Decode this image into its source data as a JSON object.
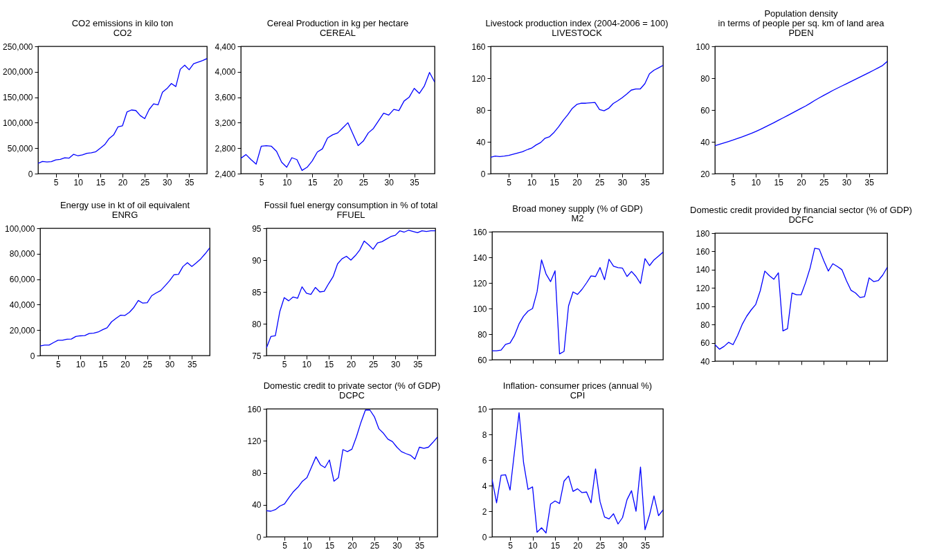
{
  "chart_data": [
    {
      "type": "line",
      "title": "CO2 emissions in kilo ton",
      "subtitle": "CO2",
      "x": [
        1,
        2,
        3,
        4,
        5,
        6,
        7,
        8,
        9,
        10,
        11,
        12,
        13,
        14,
        15,
        16,
        17,
        18,
        19,
        20,
        21,
        22,
        23,
        24,
        25,
        26,
        27,
        28,
        29,
        30,
        31,
        32,
        33,
        34,
        35,
        36,
        37,
        38,
        39
      ],
      "xlim": [
        1,
        39
      ],
      "xticks": [
        5,
        10,
        15,
        20,
        25,
        30,
        35
      ],
      "ylim": [
        0,
        250000
      ],
      "yticks": [
        0,
        {
          "value": 50000,
          "label": "50,000"
        },
        {
          "value": 100000,
          "label": "100,000"
        },
        {
          "value": 150000,
          "label": "150,000"
        },
        {
          "value": 200000,
          "label": "200,000"
        },
        {
          "value": 250000,
          "label": "250,000"
        }
      ],
      "series": [
        {
          "color": "#0000ff",
          "values": [
            20000,
            24000,
            23000,
            23500,
            27000,
            28000,
            31000,
            30500,
            38000,
            35000,
            37000,
            40000,
            41000,
            43000,
            50000,
            57000,
            69000,
            76000,
            92000,
            94000,
            121000,
            125000,
            124000,
            114000,
            108000,
            126000,
            137000,
            135000,
            160000,
            167000,
            177000,
            171000,
            205000,
            213000,
            204000,
            216000,
            219000,
            222000,
            226000
          ]
        }
      ]
    },
    {
      "type": "line",
      "title": "Cereal Production in kg per hectare",
      "subtitle": "CEREAL",
      "x": [
        1,
        2,
        3,
        4,
        5,
        6,
        7,
        8,
        9,
        10,
        11,
        12,
        13,
        14,
        15,
        16,
        17,
        18,
        19,
        20,
        21,
        22,
        23,
        24,
        25,
        26,
        27,
        28,
        29,
        30,
        31,
        32,
        33,
        34,
        35,
        36,
        37,
        38,
        39
      ],
      "xlim": [
        1,
        39
      ],
      "xticks": [
        5,
        10,
        15,
        20,
        25,
        30,
        35
      ],
      "ylim": [
        2400,
        4400
      ],
      "yticks": [
        {
          "value": 2400,
          "label": "2,400"
        },
        {
          "value": 2800,
          "label": "2,800"
        },
        {
          "value": 3200,
          "label": "3,200"
        },
        {
          "value": 3600,
          "label": "3,600"
        },
        {
          "value": 4000,
          "label": "4,000"
        },
        {
          "value": 4400,
          "label": "4,400"
        }
      ],
      "series": [
        {
          "color": "#0000ff",
          "values": [
            2640,
            2700,
            2620,
            2550,
            2830,
            2840,
            2830,
            2750,
            2580,
            2500,
            2650,
            2620,
            2450,
            2500,
            2600,
            2740,
            2790,
            2960,
            3010,
            3040,
            3120,
            3200,
            3020,
            2840,
            2910,
            3040,
            3110,
            3230,
            3350,
            3320,
            3410,
            3390,
            3540,
            3600,
            3740,
            3660,
            3780,
            3990,
            3840
          ]
        }
      ]
    },
    {
      "type": "line",
      "title": "Livestock production index (2004-2006 = 100)",
      "subtitle": "LIVESTOCK",
      "x": [
        1,
        2,
        3,
        4,
        5,
        6,
        7,
        8,
        9,
        10,
        11,
        12,
        13,
        14,
        15,
        16,
        17,
        18,
        19,
        20,
        21,
        22,
        23,
        24,
        25,
        26,
        27,
        28,
        29,
        30,
        31,
        32,
        33,
        34,
        35,
        36,
        37,
        38,
        39
      ],
      "xlim": [
        1,
        39
      ],
      "xticks": [
        5,
        10,
        15,
        20,
        25,
        30,
        35
      ],
      "ylim": [
        0,
        160
      ],
      "yticks": [
        0,
        40,
        80,
        120,
        160
      ],
      "series": [
        {
          "color": "#0000ff",
          "values": [
            20.5,
            22,
            21.5,
            22,
            23,
            24.5,
            26,
            27.5,
            30,
            32,
            36,
            39,
            44.5,
            46.5,
            52,
            59,
            67,
            74,
            82,
            87,
            88.5,
            88.5,
            89,
            89.5,
            80.5,
            79,
            82,
            88,
            91.5,
            95.5,
            100,
            105,
            106.5,
            106.5,
            113,
            125.5,
            130,
            133,
            136
          ]
        }
      ]
    },
    {
      "type": "line",
      "title": "Population density\nin terms of people per sq. km of land area",
      "subtitle": "PDEN",
      "x": [
        1,
        2,
        3,
        4,
        5,
        6,
        7,
        8,
        9,
        10,
        11,
        12,
        13,
        14,
        15,
        16,
        17,
        18,
        19,
        20,
        21,
        22,
        23,
        24,
        25,
        26,
        27,
        28,
        29,
        30,
        31,
        32,
        33,
        34,
        35,
        36,
        37,
        38,
        39
      ],
      "xlim": [
        1,
        39
      ],
      "xticks": [
        5,
        10,
        15,
        20,
        25,
        30,
        35
      ],
      "ylim": [
        20,
        100
      ],
      "yticks": [
        20,
        40,
        60,
        80,
        100
      ],
      "series": [
        {
          "color": "#0000ff",
          "values": [
            37.5,
            38.4,
            39.3,
            40.2,
            41.1,
            42.1,
            43.1,
            44.2,
            45.3,
            46.5,
            47.8,
            49.2,
            50.6,
            52,
            53.5,
            55,
            56.5,
            58,
            59.5,
            61,
            62.5,
            64.2,
            66,
            67.6,
            69.2,
            70.7,
            72.3,
            73.7,
            75.1,
            76.5,
            77.9,
            79.3,
            80.7,
            82.1,
            83.5,
            85,
            86.5,
            88,
            90.5
          ]
        }
      ]
    },
    {
      "type": "line",
      "title": "Energy use in kt of oil equivalent",
      "subtitle": "ENRG",
      "x": [
        1,
        2,
        3,
        4,
        5,
        6,
        7,
        8,
        9,
        10,
        11,
        12,
        13,
        14,
        15,
        16,
        17,
        18,
        19,
        20,
        21,
        22,
        23,
        24,
        25,
        26,
        27,
        28,
        29,
        30,
        31,
        32,
        33,
        34,
        35,
        36,
        37,
        38,
        39
      ],
      "xlim": [
        1,
        39
      ],
      "xticks": [
        5,
        10,
        15,
        20,
        25,
        30,
        35
      ],
      "ylim": [
        0,
        100000
      ],
      "yticks": [
        0,
        {
          "value": 20000,
          "label": "20,000"
        },
        {
          "value": 40000,
          "label": "40,000"
        },
        {
          "value": 60000,
          "label": "60,000"
        },
        {
          "value": 80000,
          "label": "80,000"
        },
        {
          "value": 100000,
          "label": "100,000"
        }
      ],
      "series": [
        {
          "color": "#0000ff",
          "values": [
            7500,
            8200,
            8200,
            10200,
            12000,
            12000,
            12800,
            13000,
            15000,
            15500,
            15700,
            17300,
            17600,
            18500,
            20300,
            21800,
            26500,
            29200,
            31700,
            31500,
            34000,
            37800,
            43300,
            41200,
            41500,
            47000,
            49200,
            51000,
            54800,
            58800,
            63500,
            63800,
            69900,
            73000,
            70000,
            72800,
            76000,
            80000,
            84500
          ]
        }
      ]
    },
    {
      "type": "line",
      "title": "Fossil fuel energy consumption in % of total",
      "subtitle": "FFUEL",
      "x": [
        1,
        2,
        3,
        4,
        5,
        6,
        7,
        8,
        9,
        10,
        11,
        12,
        13,
        14,
        15,
        16,
        17,
        18,
        19,
        20,
        21,
        22,
        23,
        24,
        25,
        26,
        27,
        28,
        29,
        30,
        31,
        32,
        33,
        34,
        35,
        36,
        37,
        38,
        39
      ],
      "xlim": [
        1,
        39
      ],
      "xticks": [
        5,
        10,
        15,
        20,
        25,
        30,
        35
      ],
      "ylim": [
        75,
        95
      ],
      "yticks": [
        75,
        80,
        85,
        90,
        95
      ],
      "series": [
        {
          "color": "#0000ff",
          "values": [
            76.2,
            78,
            78.1,
            81.9,
            84.1,
            83.6,
            84.2,
            84,
            85.8,
            84.8,
            84.6,
            85.7,
            85,
            85.1,
            86.3,
            87.4,
            89.4,
            90.2,
            90.6,
            90,
            90.7,
            91.6,
            93,
            92.4,
            91.7,
            92.7,
            92.9,
            93.3,
            93.7,
            93.9,
            94.6,
            94.4,
            94.7,
            94.5,
            94.3,
            94.6,
            94.5,
            94.6,
            94.6
          ]
        }
      ]
    },
    {
      "type": "line",
      "title": "Broad money supply (% of GDP)",
      "subtitle": "M2",
      "x": [
        1,
        2,
        3,
        4,
        5,
        6,
        7,
        8,
        9,
        10,
        11,
        12,
        13,
        14,
        15,
        16,
        17,
        18,
        19,
        20,
        21,
        22,
        23,
        24,
        25,
        26,
        27,
        28,
        29,
        30,
        31,
        32,
        33,
        34,
        35,
        36,
        37,
        38,
        39
      ],
      "xlim": [
        1,
        39
      ],
      "xticks": [
        5,
        10,
        15,
        20,
        25,
        30,
        35
      ],
      "ylim": [
        60,
        160
      ],
      "yticks": [
        60,
        80,
        100,
        120,
        140,
        160
      ],
      "tick_labels": "y",
      "series": [
        {
          "color": "#0000ff",
          "values": [
            67,
            67,
            67.5,
            72,
            73,
            79,
            88,
            94,
            98,
            100,
            113,
            138,
            127,
            121,
            129.5,
            64.5,
            66.5,
            102,
            113,
            111,
            115,
            120,
            125.5,
            125,
            132,
            122.5,
            138.5,
            133,
            132,
            131.5,
            125,
            129,
            125,
            119.5,
            139,
            133.5,
            138,
            141,
            144
          ]
        }
      ]
    },
    {
      "type": "line",
      "title": "Domestic credit provided by financial sector (% of GDP)",
      "subtitle": "DCFC",
      "x": [
        1,
        2,
        3,
        4,
        5,
        6,
        7,
        8,
        9,
        10,
        11,
        12,
        13,
        14,
        15,
        16,
        17,
        18,
        19,
        20,
        21,
        22,
        23,
        24,
        25,
        26,
        27,
        28,
        29,
        30,
        31,
        32,
        33,
        34,
        35,
        36,
        37,
        38,
        39
      ],
      "xlim": [
        1,
        39
      ],
      "xticks": [
        5,
        10,
        15,
        20,
        25,
        30,
        35
      ],
      "ylim": [
        40,
        180
      ],
      "yticks": [
        40,
        60,
        80,
        100,
        120,
        140,
        160,
        180
      ],
      "tick_labels": "y",
      "series": [
        {
          "color": "#0000ff",
          "values": [
            58,
            53,
            56,
            60.5,
            58,
            68,
            80,
            89,
            96,
            102,
            117,
            138.5,
            133.5,
            129.5,
            136.5,
            73,
            75.5,
            114.5,
            112.5,
            112.5,
            126,
            142,
            163.5,
            162.5,
            150,
            138.5,
            146.5,
            143.5,
            140,
            128,
            117.5,
            114.5,
            109.5,
            110.5,
            131,
            127,
            128,
            134,
            142.5
          ]
        }
      ]
    },
    {
      "type": "line",
      "title": "Domestic credit to private sector (% of GDP)",
      "subtitle": "DCPC",
      "x": [
        1,
        2,
        3,
        4,
        5,
        6,
        7,
        8,
        9,
        10,
        11,
        12,
        13,
        14,
        15,
        16,
        17,
        18,
        19,
        20,
        21,
        22,
        23,
        24,
        25,
        26,
        27,
        28,
        29,
        30,
        31,
        32,
        33,
        34,
        35,
        36,
        37,
        38,
        39
      ],
      "xlim": [
        1,
        39
      ],
      "xticks": [
        5,
        10,
        15,
        20,
        25,
        30,
        35
      ],
      "ylim": [
        0,
        160
      ],
      "yticks": [
        0,
        40,
        80,
        120,
        160
      ],
      "series": [
        {
          "color": "#0000ff",
          "values": [
            32.5,
            32,
            34,
            38.5,
            41,
            49,
            56.5,
            62,
            69.5,
            74,
            87,
            100,
            90,
            86.5,
            96,
            69.5,
            74,
            109,
            106.5,
            109.5,
            125,
            143,
            158.5,
            158.5,
            150,
            135,
            129.5,
            122,
            119,
            112,
            106.5,
            104,
            102,
            97,
            112,
            110.5,
            112,
            118,
            124.5
          ]
        }
      ]
    },
    {
      "type": "line",
      "title": "Inflation- consumer prices (annual %)",
      "subtitle": "CPI",
      "x": [
        1,
        2,
        3,
        4,
        5,
        6,
        7,
        8,
        9,
        10,
        11,
        12,
        13,
        14,
        15,
        16,
        17,
        18,
        19,
        20,
        21,
        22,
        23,
        24,
        25,
        26,
        27,
        28,
        29,
        30,
        31,
        32,
        33,
        34,
        35,
        36,
        37,
        38,
        39
      ],
      "xlim": [
        1,
        39
      ],
      "xticks": [
        5,
        10,
        15,
        20,
        25,
        30,
        35
      ],
      "ylim": [
        0,
        10
      ],
      "yticks": [
        0,
        2,
        4,
        6,
        8,
        10
      ],
      "series": [
        {
          "color": "#0000ff",
          "values": [
            4.5,
            2.65,
            4.8,
            4.85,
            3.65,
            6.7,
            9.7,
            5.8,
            3.7,
            3.9,
            0.35,
            0.7,
            0.3,
            2.55,
            2.8,
            2.6,
            4.35,
            4.75,
            3.55,
            3.75,
            3.45,
            3.5,
            2.65,
            5.3,
            2.75,
            1.55,
            1.4,
            1.8,
            1.0,
            1.5,
            2.9,
            3.6,
            2.0,
            5.45,
            0.55,
            1.7,
            3.2,
            1.65,
            2.1
          ]
        }
      ]
    }
  ]
}
